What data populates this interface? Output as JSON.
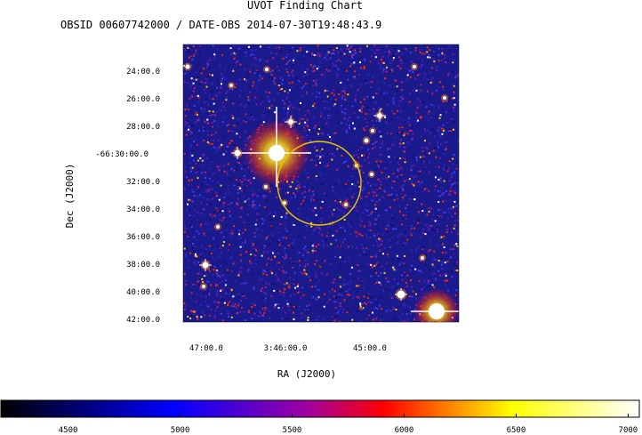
{
  "chart_data": {
    "type": "heatmap",
    "title": "UVOT Finding Chart",
    "subtitle": "OBSID 00607742000 / DATE-OBS 2014-07-30T19:48:43.9",
    "xlabel": "RA (J2000)",
    "ylabel": "Dec (J2000)",
    "x_ticks": [
      "47:00.0",
      "3:46:00.0",
      "45:00.0"
    ],
    "y_ticks": [
      "24:00.0",
      "26:00.0",
      "28:00.0",
      "-66:30:00.0",
      "32:00.0",
      "34:00.0",
      "36:00.0",
      "38:00.0",
      "40:00.0",
      "42:00.0"
    ],
    "colorbar": {
      "ticks": [
        4500,
        5000,
        5500,
        6000,
        6500,
        7000
      ],
      "range": [
        4200,
        7050
      ],
      "colormap": [
        "#000000",
        "#0000ff",
        "#ff0000",
        "#ffff00",
        "#ffffff"
      ]
    },
    "colors": {
      "background": "#1a1a8c",
      "noise_hot": "#ff2a00",
      "circle": "#e8c800",
      "star": "#ffffff"
    }
  }
}
